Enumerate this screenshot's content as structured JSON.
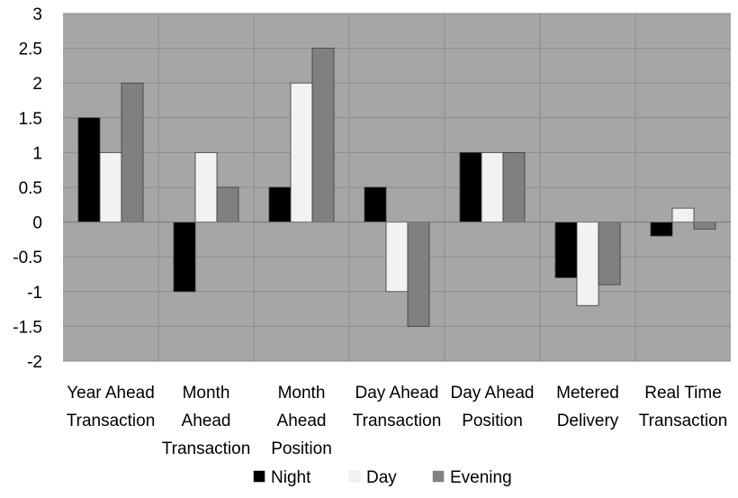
{
  "chart_data": {
    "type": "bar",
    "categories": [
      [
        "Year Ahead",
        "Transaction"
      ],
      [
        "Month",
        "Ahead",
        "Transaction"
      ],
      [
        "Month",
        "Ahead",
        "Position"
      ],
      [
        "Day Ahead",
        "Transaction"
      ],
      [
        "Day Ahead",
        "Position"
      ],
      [
        "Metered",
        "Delivery"
      ],
      [
        "Real Time",
        "Transaction"
      ]
    ],
    "series": [
      {
        "name": "Night",
        "color": "#000000",
        "values": [
          1.5,
          -1.0,
          0.5,
          0.5,
          1.0,
          -0.8,
          -0.2
        ]
      },
      {
        "name": "Day",
        "color": "#f2f2f2",
        "values": [
          1.0,
          1.0,
          2.0,
          -1.0,
          1.0,
          -1.2,
          0.2
        ]
      },
      {
        "name": "Evening",
        "color": "#808080",
        "values": [
          2.0,
          0.5,
          2.5,
          -1.5,
          1.0,
          -0.9,
          -0.1
        ]
      }
    ],
    "ylim": [
      -2,
      3
    ],
    "yticks": [
      "3",
      "2.5",
      "2",
      "1.5",
      "1",
      "0.5",
      "0",
      "-0.5",
      "-1",
      "-1.5",
      "-2"
    ],
    "grid": true,
    "legend_position": "bottom",
    "plot_background": "#a6a6a6",
    "title": "",
    "xlabel": "",
    "ylabel": ""
  }
}
